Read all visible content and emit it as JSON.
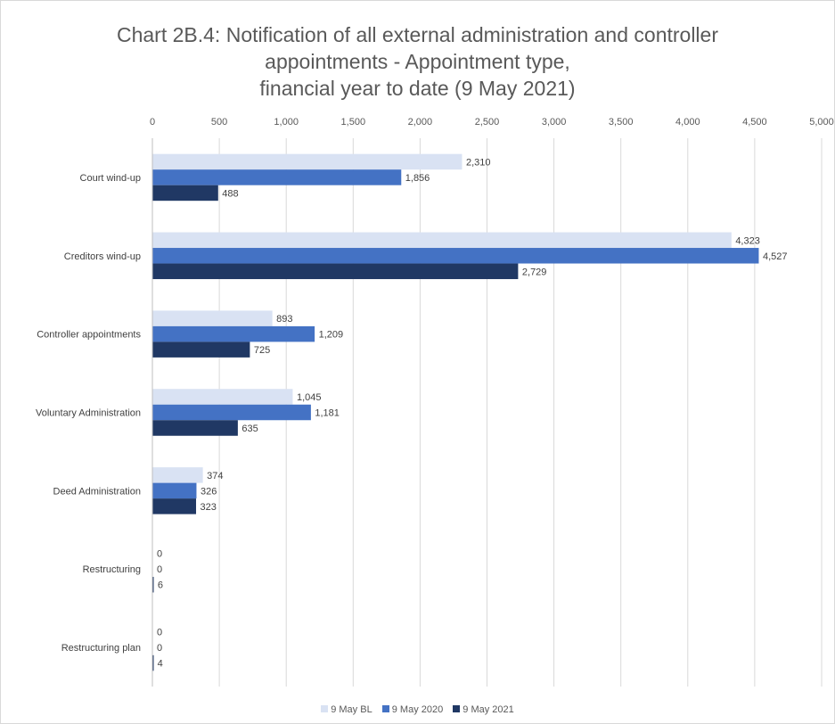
{
  "chart_data": {
    "type": "bar",
    "orientation": "horizontal",
    "title_lines": [
      "Chart 2B.4: Notification of all external administration and controller",
      "appointments - Appointment type,",
      "financial year to date (9 May 2021)"
    ],
    "categories": [
      "Court wind-up",
      "Creditors wind-up",
      "Controller appointments",
      "Voluntary Administration",
      "Deed Administration",
      "Restructuring",
      "Restructuring plan"
    ],
    "series": [
      {
        "name": "9 May BL",
        "color": "#d9e2f3",
        "values": [
          2310,
          4323,
          893,
          1045,
          374,
          0,
          0
        ],
        "labels": [
          "2,310",
          "4,323",
          "893",
          "1,045",
          "374",
          "0",
          "0"
        ]
      },
      {
        "name": "9 May 2020",
        "color": "#4472c4",
        "values": [
          1856,
          4527,
          1209,
          1181,
          326,
          0,
          0
        ],
        "labels": [
          "1,856",
          "4,527",
          "1,209",
          "1,181",
          "326",
          "0",
          "0"
        ]
      },
      {
        "name": "9 May 2021",
        "color": "#203864",
        "values": [
          488,
          2729,
          725,
          635,
          323,
          6,
          4
        ],
        "labels": [
          "488",
          "2,729",
          "725",
          "635",
          "323",
          "6",
          "4"
        ]
      }
    ],
    "xlim": [
      0,
      5000
    ],
    "xticks": [
      0,
      500,
      1000,
      1500,
      2000,
      2500,
      3000,
      3500,
      4000,
      4500,
      5000
    ],
    "xtick_labels": [
      "0",
      "500",
      "1,000",
      "1,500",
      "2,000",
      "2,500",
      "3,000",
      "3,500",
      "4,000",
      "4,500",
      "5,000"
    ],
    "x_axis_position": "top",
    "grid": "vertical",
    "legend_position": "bottom"
  }
}
